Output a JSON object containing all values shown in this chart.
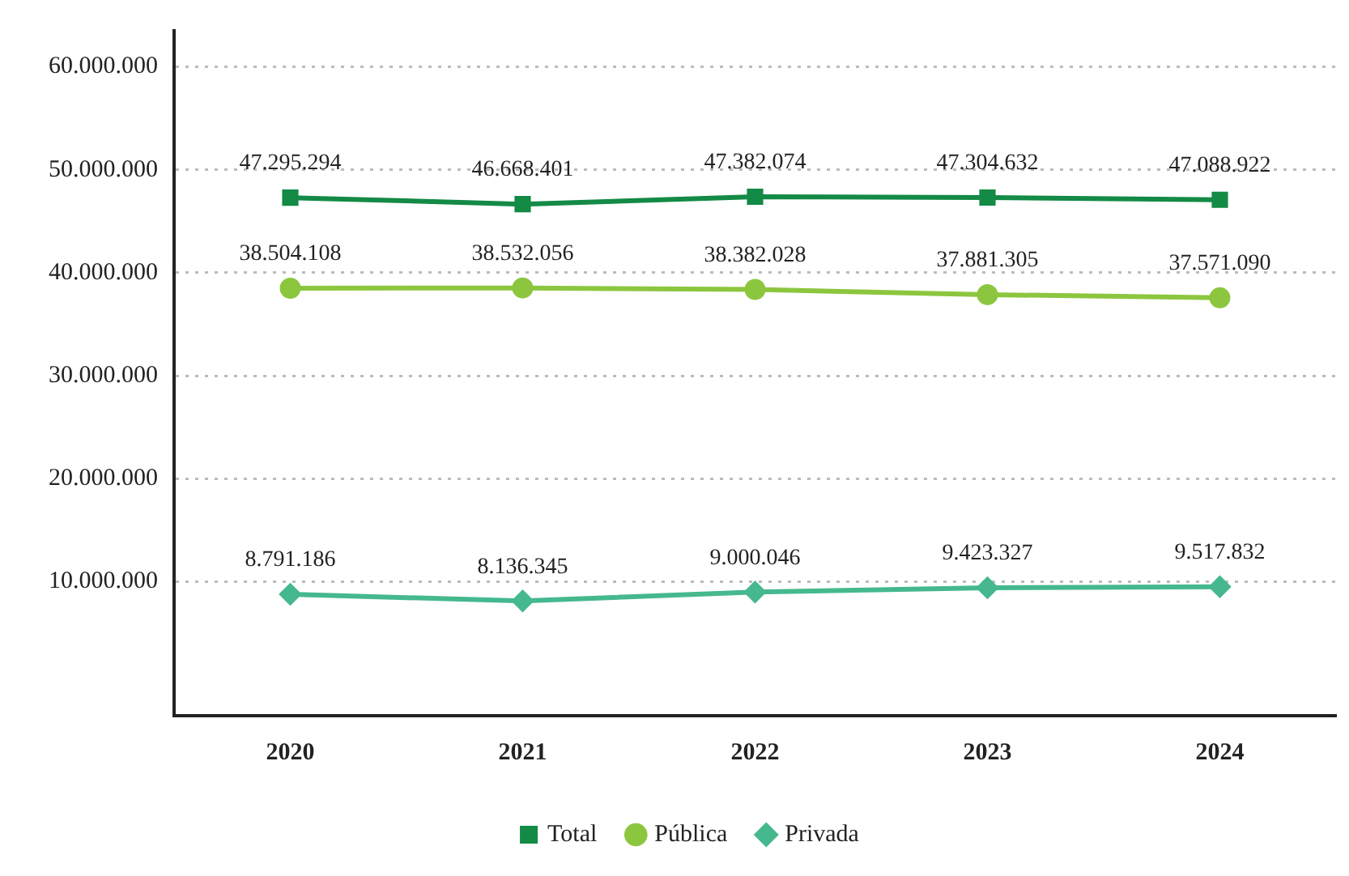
{
  "chart_data": {
    "type": "line",
    "categories": [
      "2020",
      "2021",
      "2022",
      "2023",
      "2024"
    ],
    "series": [
      {
        "name": "Total",
        "color": "#138a45",
        "marker": "square",
        "values": [
          47295294,
          46668401,
          47382074,
          47304632,
          47088922
        ],
        "value_labels": [
          "47.295.294",
          "46.668.401",
          "47.382.074",
          "47.304.632",
          "47.088.922"
        ]
      },
      {
        "name": "Pública",
        "color": "#8cc63f",
        "marker": "circle",
        "values": [
          38504108,
          38532056,
          38382028,
          37881305,
          37571090
        ],
        "value_labels": [
          "38.504.108",
          "38.532.056",
          "38.382.028",
          "37.881.305",
          "37.571.090"
        ]
      },
      {
        "name": "Privada",
        "color": "#45b88e",
        "marker": "diamond",
        "values": [
          8791186,
          8136345,
          9000046,
          9423327,
          9517832
        ],
        "value_labels": [
          "8.791.186",
          "8.136.345",
          "9.000.046",
          "9.423.327",
          "9.517.832"
        ]
      }
    ],
    "ylim": [
      -3000000,
      63500000
    ],
    "yticks": [
      {
        "value": 10000000,
        "label": "10.000.000"
      },
      {
        "value": 20000000,
        "label": "20.000.000"
      },
      {
        "value": 30000000,
        "label": "30.000.000"
      },
      {
        "value": 40000000,
        "label": "40.000.000"
      },
      {
        "value": 50000000,
        "label": "50.000.000"
      },
      {
        "value": 60000000,
        "label": "60.000.000"
      }
    ],
    "grid": "y",
    "legend": "bottom"
  }
}
